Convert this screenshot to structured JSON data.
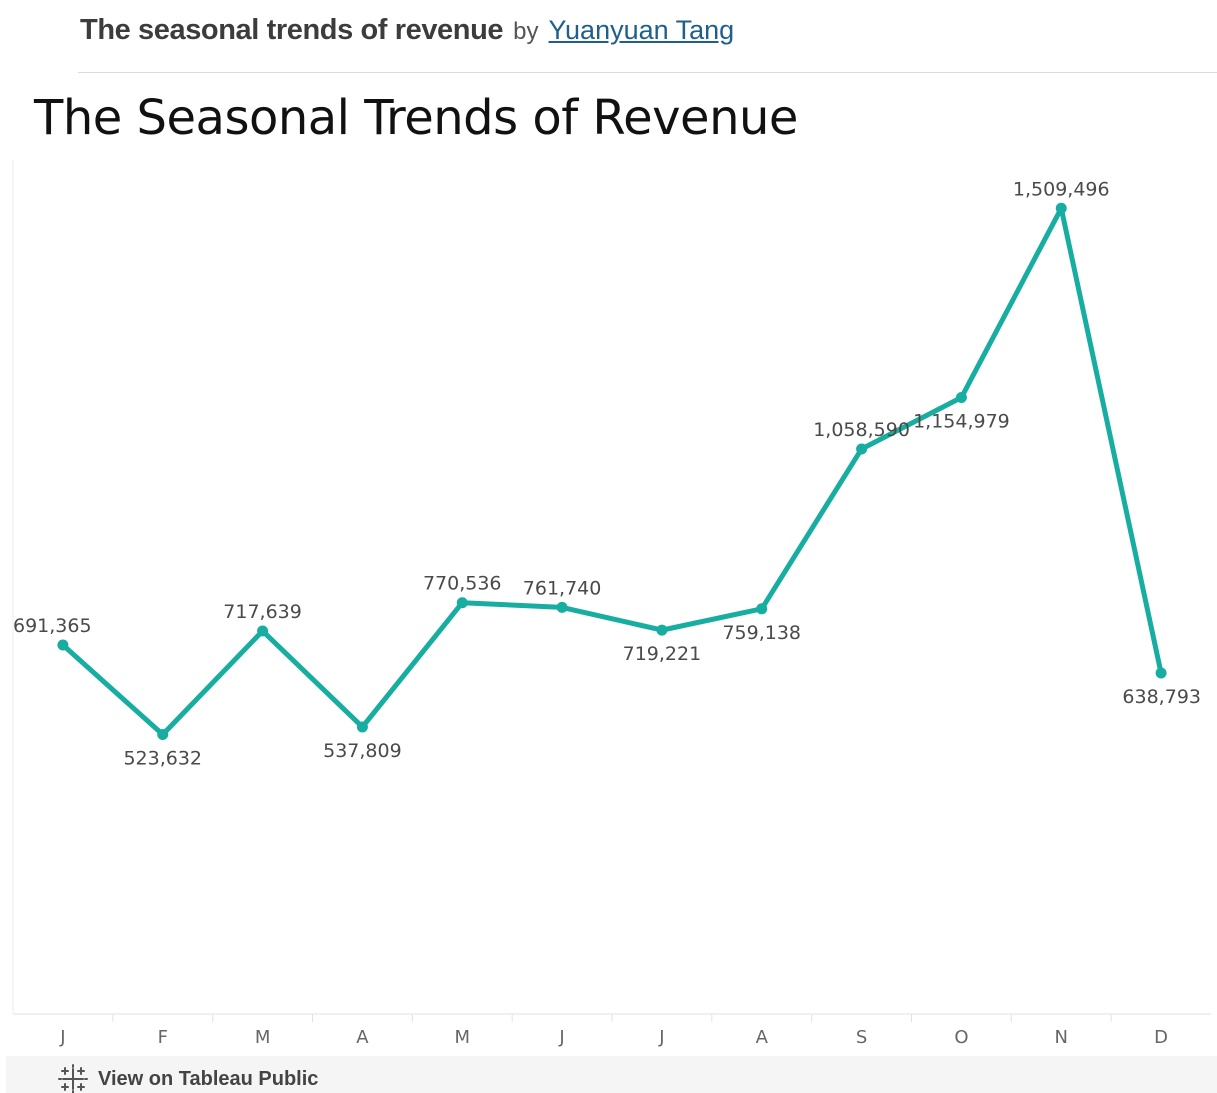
{
  "header": {
    "viz_title": "The seasonal trends of revenue",
    "by_text": "by",
    "author": "Yuanyuan Tang"
  },
  "footer": {
    "link_label": "View on Tableau Public",
    "icon": "tableau-logo-icon"
  },
  "colors": {
    "line": "#17ada1",
    "author_link": "#1f5f8b"
  },
  "chart_data": {
    "type": "line",
    "title": "The Seasonal Trends of Revenue",
    "xlabel": "",
    "ylabel": "",
    "categories": [
      "J",
      "F",
      "M",
      "A",
      "M",
      "J",
      "J",
      "A",
      "S",
      "O",
      "N",
      "D"
    ],
    "values": [
      691365,
      523632,
      717639,
      537809,
      770536,
      761740,
      719221,
      759138,
      1058590,
      1154979,
      1509496,
      638793
    ],
    "data_labels": [
      "691,365",
      "523,632",
      "717,639",
      "537,809",
      "770,536",
      "761,740",
      "719,221",
      "759,138",
      "1,058,590",
      "1,154,979",
      "1,509,496",
      "638,793"
    ],
    "label_placement": [
      "above",
      "below",
      "above",
      "below",
      "above",
      "above",
      "below",
      "below",
      "above",
      "below",
      "above",
      "below"
    ],
    "ylim": [
      0,
      1600000
    ],
    "grid": false,
    "legend": "none"
  }
}
